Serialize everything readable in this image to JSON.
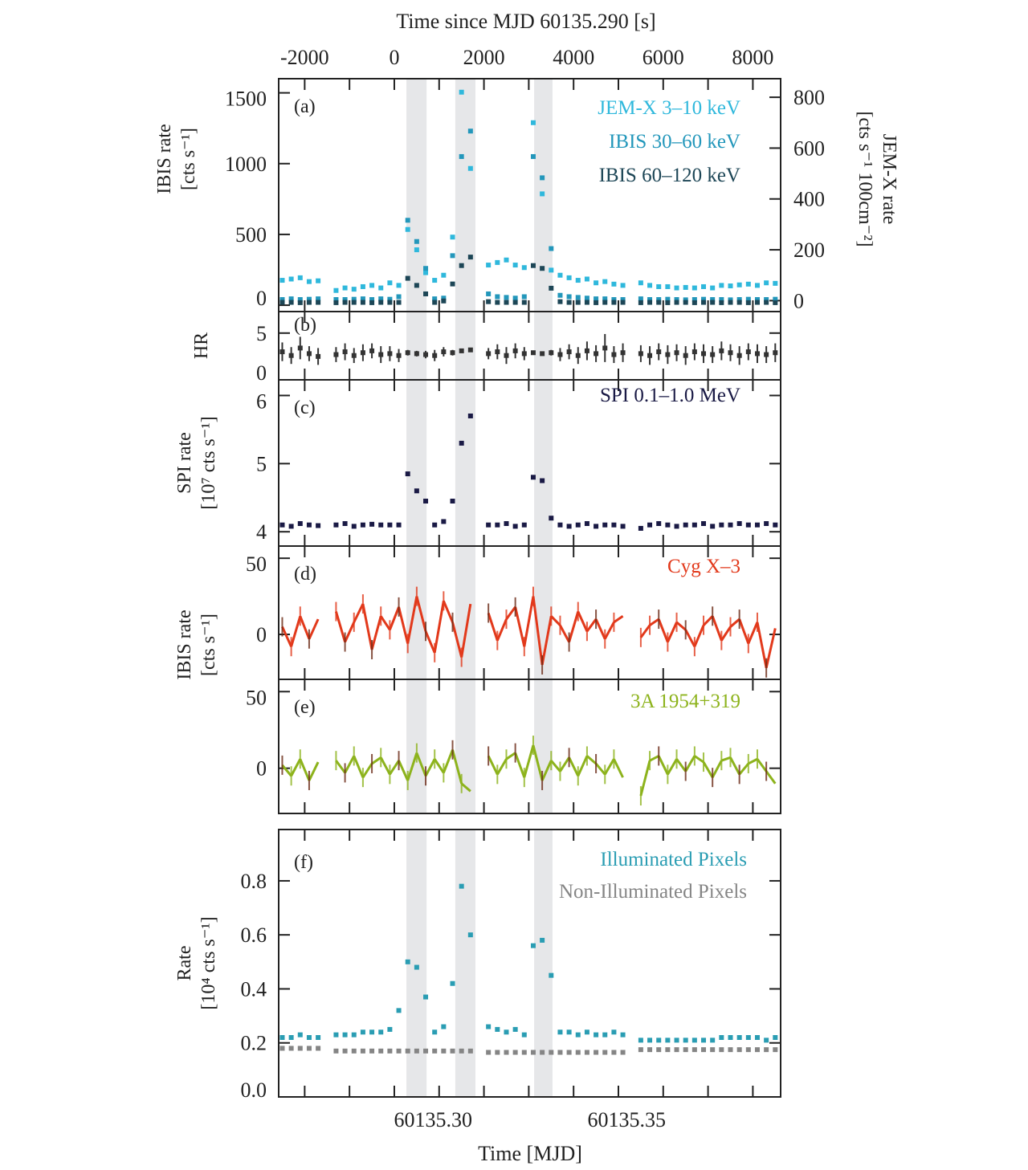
{
  "chart_data": {
    "type": "scatter",
    "top_axis": {
      "label": "Time since MJD 60135.290 [s]",
      "ticks": [
        -2000,
        0,
        2000,
        4000,
        6000,
        8000
      ],
      "xlim": [
        -2580,
        8620
      ]
    },
    "bottom_axis": {
      "label": "Time [MJD]",
      "ticks": [
        "60135.30",
        "60135.35"
      ],
      "tick_values_s": [
        864,
        5184
      ]
    },
    "shaded_intervals_s": [
      [
        270,
        720
      ],
      [
        1360,
        1810
      ],
      [
        3120,
        3530
      ]
    ],
    "t": [
      -2500,
      -2300,
      -2100,
      -1900,
      -1700,
      -1300,
      -1100,
      -900,
      -700,
      -500,
      -300,
      -100,
      100,
      300,
      500,
      700,
      900,
      1100,
      1300,
      1500,
      1700,
      2100,
      2300,
      2500,
      2700,
      2900,
      3100,
      3300,
      3500,
      3700,
      3900,
      4100,
      4300,
      4500,
      4700,
      4900,
      5100,
      5500,
      5700,
      5900,
      6100,
      6300,
      6500,
      6700,
      6900,
      7100,
      7300,
      7500,
      7700,
      7900,
      8100,
      8300,
      8500
    ],
    "panels": [
      {
        "id": "a",
        "tag": "(a)",
        "ylabel": [
          "IBIS rate",
          "[cts s⁻¹]"
        ],
        "yticks": [
          0,
          500,
          1000,
          1500
        ],
        "ylim": [
          -45,
          1600
        ],
        "right_ylabel": [
          "JEM-X rate",
          "[cts s⁻¹ 100cm⁻²]"
        ],
        "right_yticks": [
          0,
          200,
          400,
          600,
          800
        ],
        "right_ylim": [
          -43,
          873
        ],
        "series": [
          {
            "name": "JEM-X 3–10 keV",
            "axis": "right",
            "color": "#2fb8dc",
            "values": [
              80,
              85,
              90,
              75,
              78,
              40,
              50,
              45,
              55,
              60,
              50,
              70,
              60,
              280,
              200,
              110,
              80,
              100,
              250,
              820,
              520,
              140,
              150,
              160,
              140,
              130,
              700,
              420,
              120,
              100,
              90,
              80,
              85,
              70,
              75,
              65,
              60,
              70,
              60,
              55,
              55,
              50,
              52,
              50,
              55,
              50,
              60,
              58,
              62,
              65,
              60,
              70,
              68
            ]
          },
          {
            "name": "IBIS 30–60 keV",
            "axis": "left",
            "color": "#2397bb",
            "values": [
              40,
              45,
              40,
              42,
              45,
              40,
              40,
              42,
              45,
              40,
              45,
              42,
              60,
              600,
              450,
              260,
              45,
              50,
              350,
              1050,
              1230,
              80,
              60,
              55,
              50,
              60,
              1050,
              900,
              400,
              70,
              60,
              55,
              50,
              45,
              45,
              40,
              40,
              45,
              40,
              40,
              42,
              40,
              38,
              40,
              42,
              40,
              40,
              38,
              40,
              42,
              40,
              40,
              42
            ]
          },
          {
            "name": "IBIS 60–120 keV",
            "axis": "left",
            "color": "#1d4656",
            "values": [
              20,
              20,
              18,
              20,
              20,
              18,
              20,
              20,
              20,
              18,
              20,
              20,
              20,
              190,
              140,
              80,
              20,
              30,
              150,
              280,
              340,
              25,
              20,
              20,
              20,
              20,
              280,
              260,
              120,
              25,
              20,
              20,
              20,
              18,
              20,
              20,
              20,
              18,
              20,
              20,
              18,
              20,
              20,
              18,
              20,
              20,
              18,
              20,
              20,
              18,
              20,
              20,
              18
            ]
          }
        ]
      },
      {
        "id": "b",
        "tag": "(b)",
        "ylabel": [
          "HR"
        ],
        "yticks": [
          0,
          5
        ],
        "ylim": [
          0,
          7.3
        ],
        "series": [
          {
            "color": "#333333",
            "values": [
              3.0,
              2.6,
              3.4,
              2.8,
              2.5,
              2.7,
              3.0,
              2.6,
              2.9,
              3.1,
              2.7,
              2.8,
              2.6,
              2.9,
              2.8,
              2.7,
              2.6,
              3.0,
              2.9,
              3.1,
              3.2,
              2.8,
              3.0,
              2.6,
              3.1,
              2.8,
              2.9,
              2.8,
              2.9,
              2.7,
              3.0,
              2.6,
              3.1,
              2.8,
              3.4,
              2.7,
              2.9,
              2.8,
              2.6,
              3.0,
              2.7,
              2.9,
              2.6,
              3.0,
              2.8,
              2.7,
              3.1,
              2.9,
              2.6,
              3.0,
              2.8,
              2.7,
              2.9
            ],
            "errors": [
              1.0,
              0.9,
              1.2,
              0.8,
              0.9,
              0.8,
              0.9,
              0.8,
              0.9,
              0.8,
              0.9,
              0.8,
              0.7,
              0.3,
              0.3,
              0.4,
              0.6,
              0.5,
              0.3,
              0.2,
              0.2,
              0.6,
              0.8,
              0.9,
              0.8,
              0.7,
              0.2,
              0.2,
              0.3,
              0.7,
              0.8,
              0.9,
              1.0,
              0.9,
              1.5,
              0.9,
              1.0,
              0.9,
              1.0,
              0.9,
              1.0,
              0.9,
              1.0,
              0.9,
              1.0,
              0.9,
              1.0,
              0.9,
              1.0,
              0.9,
              1.0,
              0.9,
              1.0
            ]
          }
        ]
      },
      {
        "id": "c",
        "tag": "(c)",
        "ylabel": [
          "SPI rate",
          "[10⁷ cts s⁻¹]"
        ],
        "yticks": [
          4,
          5,
          6
        ],
        "ylim": [
          3.79,
          6.23
        ],
        "series": [
          {
            "name": "SPI 0.1–1.0 MeV",
            "color": "#1a1a45",
            "values": [
              4.1,
              4.08,
              4.12,
              4.1,
              4.09,
              4.1,
              4.12,
              4.08,
              4.1,
              4.11,
              4.1,
              4.1,
              4.1,
              4.85,
              4.6,
              4.45,
              4.1,
              4.15,
              4.45,
              5.3,
              5.7,
              4.1,
              4.1,
              4.12,
              4.08,
              4.1,
              4.8,
              4.75,
              4.2,
              4.1,
              4.08,
              4.1,
              4.12,
              4.08,
              4.1,
              4.1,
              4.08,
              4.05,
              4.1,
              4.12,
              4.1,
              4.08,
              4.1,
              4.1,
              4.12,
              4.08,
              4.1,
              4.1,
              4.12,
              4.1,
              4.1,
              4.12,
              4.1
            ]
          }
        ]
      },
      {
        "id": "d",
        "tag": "(d)",
        "ylabel": [
          "IBIS rate",
          "[cts s⁻¹]"
        ],
        "yticks": [
          0,
          50
        ],
        "ylim": [
          -29.5,
          58
        ],
        "series": [
          {
            "name": "Cyg X–3",
            "color": "#e2391b",
            "values": [
              5,
              -8,
              12,
              -3,
              10,
              15,
              -5,
              8,
              20,
              -10,
              12,
              3,
              18,
              -6,
              25,
              2,
              -12,
              22,
              8,
              -15,
              20,
              14,
              -4,
              10,
              18,
              -8,
              25,
              -20,
              12,
              6,
              -5,
              15,
              2,
              10,
              -3,
              8,
              12,
              -2,
              6,
              10,
              -5,
              8,
              3,
              -8,
              6,
              12,
              -4,
              5,
              10,
              -6,
              8,
              -22,
              4
            ]
          }
        ]
      },
      {
        "id": "e",
        "tag": "(e)",
        "ylabel": [],
        "yticks": [
          0,
          50
        ],
        "ylim": [
          -29.5,
          58
        ],
        "series": [
          {
            "name": "3A 1954+319",
            "color": "#8db31c",
            "values": [
              2,
              -5,
              6,
              -8,
              4,
              5,
              -3,
              8,
              -6,
              3,
              7,
              -4,
              5,
              -8,
              10,
              -5,
              6,
              -3,
              12,
              -10,
              -15,
              8,
              -4,
              6,
              10,
              -6,
              15,
              -8,
              5,
              -2,
              7,
              -5,
              8,
              3,
              -4,
              6,
              -6,
              -18,
              5,
              8,
              -4,
              6,
              -2,
              8,
              4,
              -6,
              5,
              7,
              -4,
              3,
              6,
              -2,
              -10
            ]
          }
        ]
      },
      {
        "id": "f",
        "tag": "(f)",
        "ylabel": [
          "Rate",
          "[10⁴ cts s⁻¹]"
        ],
        "yticks": [
          "0.0",
          "0.2",
          "0.4",
          "0.6",
          "0.8"
        ],
        "ylim": [
          0,
          0.99
        ],
        "series": [
          {
            "name": "Illuminated Pixels",
            "color": "#2a9db3",
            "values": [
              0.22,
              0.22,
              0.23,
              0.22,
              0.22,
              0.23,
              0.23,
              0.23,
              0.24,
              0.24,
              0.24,
              0.25,
              0.32,
              0.5,
              0.48,
              0.37,
              0.24,
              0.26,
              0.42,
              0.78,
              0.6,
              0.26,
              0.25,
              0.24,
              0.25,
              0.23,
              0.56,
              0.58,
              0.45,
              0.24,
              0.24,
              0.23,
              0.24,
              0.23,
              0.23,
              0.24,
              0.23,
              0.21,
              0.21,
              0.21,
              0.21,
              0.21,
              0.21,
              0.21,
              0.21,
              0.21,
              0.22,
              0.22,
              0.22,
              0.22,
              0.22,
              0.21,
              0.22
            ]
          },
          {
            "name": "Non-Illuminated Pixels",
            "color": "#858585",
            "values": [
              0.18,
              0.18,
              0.18,
              0.18,
              0.18,
              0.17,
              0.17,
              0.17,
              0.17,
              0.17,
              0.17,
              0.17,
              0.17,
              0.17,
              0.17,
              0.17,
              0.17,
              0.17,
              0.17,
              0.17,
              0.17,
              0.165,
              0.165,
              0.165,
              0.165,
              0.165,
              0.165,
              0.165,
              0.165,
              0.165,
              0.165,
              0.165,
              0.165,
              0.165,
              0.165,
              0.165,
              0.165,
              0.175,
              0.175,
              0.175,
              0.175,
              0.175,
              0.175,
              0.175,
              0.175,
              0.175,
              0.175,
              0.175,
              0.175,
              0.175,
              0.175,
              0.175,
              0.175
            ]
          }
        ]
      }
    ]
  }
}
